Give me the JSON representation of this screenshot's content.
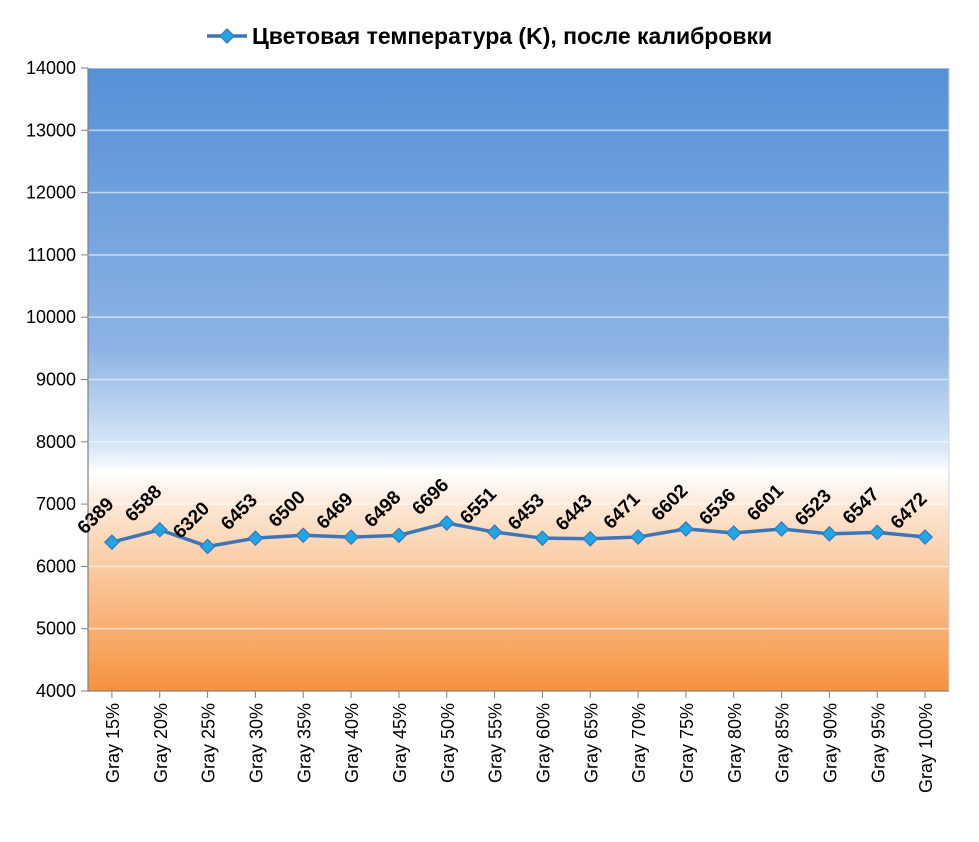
{
  "chart_data": {
    "type": "line",
    "title": "",
    "xlabel": "",
    "ylabel": "",
    "categories": [
      "Gray 15%",
      "Gray 20%",
      "Gray 25%",
      "Gray 30%",
      "Gray 35%",
      "Gray 40%",
      "Gray 45%",
      "Gray 50%",
      "Gray 55%",
      "Gray 60%",
      "Gray 65%",
      "Gray 70%",
      "Gray 75%",
      "Gray 80%",
      "Gray 85%",
      "Gray 90%",
      "Gray 95%",
      "Gray 100%"
    ],
    "series": [
      {
        "name": "Цветовая температура (K), после калибровки",
        "values": [
          6389,
          6588,
          6320,
          6453,
          6500,
          6469,
          6498,
          6696,
          6551,
          6453,
          6443,
          6471,
          6602,
          6536,
          6601,
          6523,
          6547,
          6472
        ],
        "color": "#3F74B7",
        "marker_color": "#1EA7E6"
      }
    ],
    "ylim": [
      4000,
      14000
    ],
    "yticks": [
      "4000",
      "5000",
      "6000",
      "7000",
      "8000",
      "9000",
      "10000",
      "11000",
      "12000",
      "13000",
      "14000"
    ],
    "legend": "top-center",
    "grid": true,
    "background_bands": {
      "blue_top": "#5590D6",
      "blue_bottom": "#D9E8F8",
      "orange_top": "#FCE5D0",
      "orange_bottom": "#F6923F"
    }
  }
}
